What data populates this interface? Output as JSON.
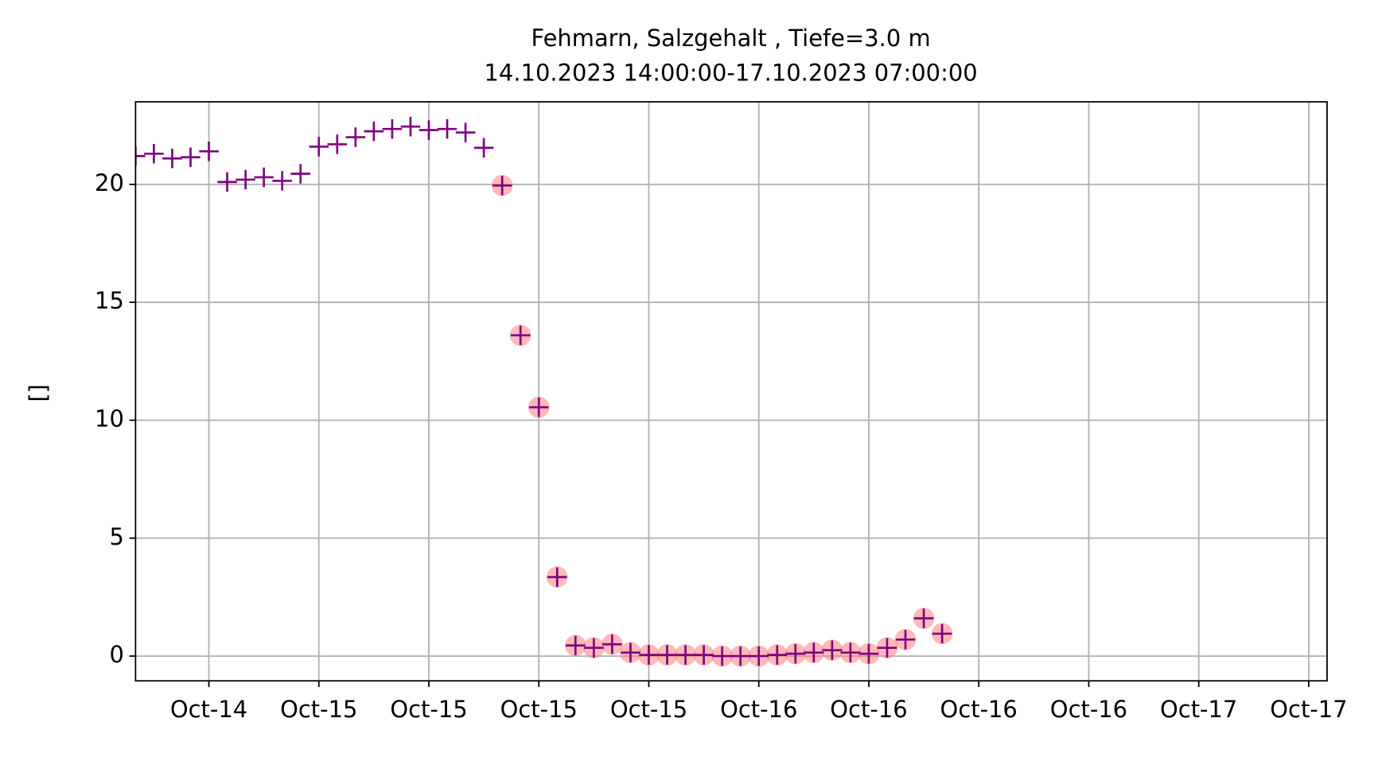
{
  "chart_data": {
    "type": "scatter",
    "title": "Fehmarn, Salzgehalt , Tiefe=3.0 m",
    "subtitle": "14.10.2023 14:00:00-17.10.2023 07:00:00",
    "y_label": "[]",
    "x": [
      "2023-10-14T14:00",
      "2023-10-14T15:00",
      "2023-10-14T16:00",
      "2023-10-14T17:00",
      "2023-10-14T18:00",
      "2023-10-14T19:00",
      "2023-10-14T20:00",
      "2023-10-14T21:00",
      "2023-10-14T22:00",
      "2023-10-14T23:00",
      "2023-10-15T00:00",
      "2023-10-15T01:00",
      "2023-10-15T02:00",
      "2023-10-15T03:00",
      "2023-10-15T04:00",
      "2023-10-15T05:00",
      "2023-10-15T06:00",
      "2023-10-15T07:00",
      "2023-10-15T08:00",
      "2023-10-15T09:00",
      "2023-10-15T10:00",
      "2023-10-15T11:00",
      "2023-10-15T12:00",
      "2023-10-15T13:00",
      "2023-10-15T14:00",
      "2023-10-15T15:00",
      "2023-10-15T16:00",
      "2023-10-15T17:00",
      "2023-10-15T18:00",
      "2023-10-15T19:00",
      "2023-10-15T20:00",
      "2023-10-15T21:00",
      "2023-10-15T22:00",
      "2023-10-15T23:00",
      "2023-10-16T00:00",
      "2023-10-16T01:00",
      "2023-10-16T02:00",
      "2023-10-16T03:00",
      "2023-10-16T04:00",
      "2023-10-16T05:00",
      "2023-10-16T06:00",
      "2023-10-16T07:00",
      "2023-10-16T08:00",
      "2023-10-16T09:00",
      "2023-10-16T10:00"
    ],
    "series": [
      {
        "marker": "+",
        "color": "#800080",
        "values": [
          21.2,
          21.3,
          21.1,
          21.15,
          21.4,
          20.1,
          20.2,
          20.3,
          20.15,
          20.45,
          21.6,
          21.7,
          22.0,
          22.25,
          22.35,
          22.45,
          22.3,
          22.35,
          22.2,
          21.55,
          19.95,
          13.6,
          10.55,
          3.35,
          0.45,
          0.35,
          0.5,
          0.15,
          0.05,
          0.05,
          0.05,
          0.05,
          0.0,
          0.0,
          0.0,
          0.05,
          0.1,
          0.15,
          0.25,
          0.15,
          0.1,
          0.35,
          0.7,
          1.6,
          0.95
        ]
      },
      {
        "marker": "o",
        "color": "#ff8080",
        "values": [
          null,
          null,
          null,
          null,
          null,
          null,
          null,
          null,
          null,
          null,
          null,
          null,
          null,
          null,
          null,
          null,
          null,
          null,
          null,
          null,
          19.95,
          13.6,
          10.55,
          3.35,
          0.45,
          0.35,
          0.5,
          0.15,
          0.05,
          0.05,
          0.05,
          0.05,
          0.0,
          0.0,
          0.0,
          0.05,
          0.1,
          0.15,
          0.25,
          0.15,
          0.1,
          0.35,
          0.7,
          1.6,
          0.95
        ]
      }
    ],
    "xlim": [
      "2023-10-14T14:00",
      "2023-10-17T07:00"
    ],
    "xticks": [
      {
        "value": "2023-10-14T18:00",
        "label": "Oct-14"
      },
      {
        "value": "2023-10-15T00:00",
        "label": "Oct-15"
      },
      {
        "value": "2023-10-15T06:00",
        "label": "Oct-15"
      },
      {
        "value": "2023-10-15T12:00",
        "label": "Oct-15"
      },
      {
        "value": "2023-10-15T18:00",
        "label": "Oct-15"
      },
      {
        "value": "2023-10-16T00:00",
        "label": "Oct-16"
      },
      {
        "value": "2023-10-16T06:00",
        "label": "Oct-16"
      },
      {
        "value": "2023-10-16T12:00",
        "label": "Oct-16"
      },
      {
        "value": "2023-10-16T18:00",
        "label": "Oct-16"
      },
      {
        "value": "2023-10-17T00:00",
        "label": "Oct-17"
      },
      {
        "value": "2023-10-17T06:00",
        "label": "Oct-17"
      }
    ],
    "ylim": [
      -1.05,
      23.5
    ],
    "yticks": [
      0,
      5,
      10,
      15,
      20
    ],
    "grid": true
  }
}
